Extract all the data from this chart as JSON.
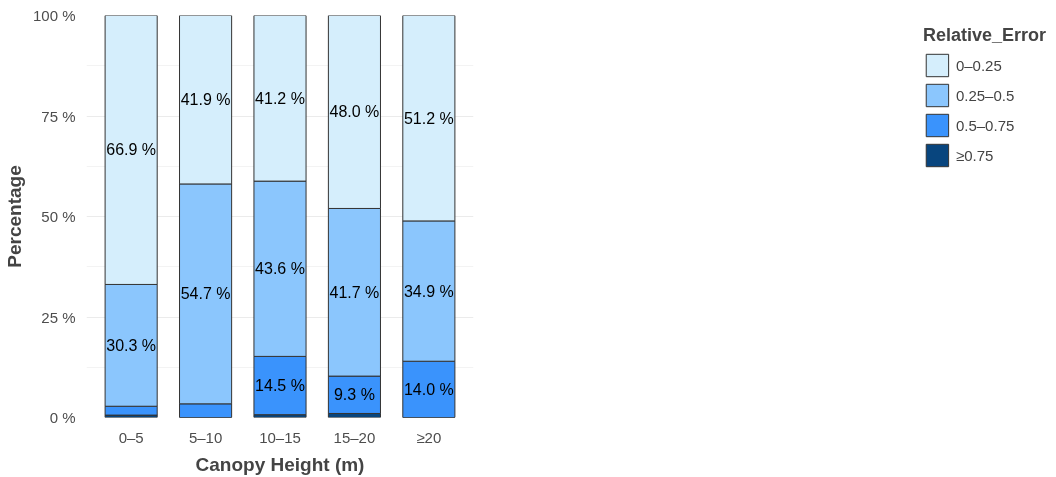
{
  "chart_data": {
    "type": "bar",
    "stacked": true,
    "xlabel": "Canopy Height (m)",
    "ylabel": "Percentage",
    "legend_title": "Relative_Error",
    "legend": "right",
    "categories": [
      "0–5",
      "5–10",
      "10–15",
      "15–20",
      "≥20"
    ],
    "series": [
      {
        "name": "≥0.75",
        "color": "#08457e",
        "values": [
          0.6,
          0,
          0.7,
          1.0,
          0
        ]
      },
      {
        "name": "0.5–0.75",
        "color": "#3a93fc",
        "values": [
          2.2,
          3.4,
          14.5,
          9.3,
          14.0
        ],
        "value_labels": [
          null,
          null,
          "14.5 %",
          "9.3 %",
          "14.0 %"
        ]
      },
      {
        "name": "0.25–0.5",
        "color": "#8bc6fd",
        "values": [
          30.3,
          54.7,
          43.6,
          41.7,
          34.9
        ],
        "value_labels": [
          "30.3 %",
          "54.7 %",
          "43.6 %",
          "41.7 %",
          "34.9 %"
        ]
      },
      {
        "name": "0–0.25",
        "color": "#d5eefc",
        "values": [
          66.9,
          41.9,
          41.2,
          48.0,
          51.2
        ],
        "value_labels": [
          "66.9 %",
          "41.9 %",
          "41.2 %",
          "48.0 %",
          "51.2 %"
        ]
      }
    ],
    "ylim": [
      0,
      100
    ],
    "yticks": [
      {
        "value": 0,
        "label": "0 %"
      },
      {
        "value": 25,
        "label": "25 %"
      },
      {
        "value": 50,
        "label": "50 %"
      },
      {
        "value": 75,
        "label": "75 %"
      },
      {
        "value": 100,
        "label": "100 %"
      }
    ],
    "grid": "y"
  }
}
